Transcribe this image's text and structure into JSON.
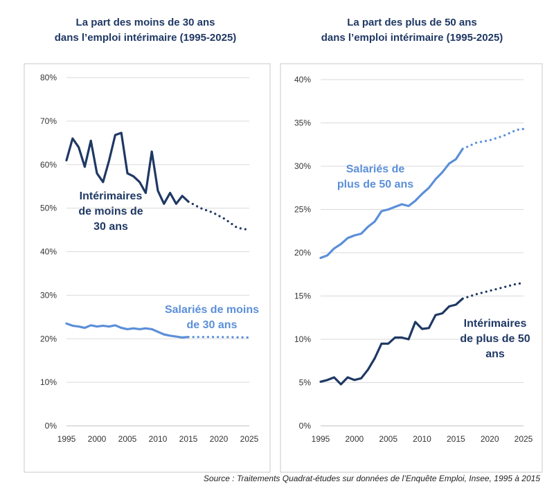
{
  "colors": {
    "dark": "#1f3864",
    "light": "#5b8fd9",
    "panel_border": "#c9c9c9",
    "grid": "#d9d9d9"
  },
  "chart_data": [
    {
      "type": "line",
      "title_line1": "La part des moins de 30 ans",
      "title_line2": "dans l’emploi intérimaire (1995-2025)",
      "xlim": [
        1995,
        2025
      ],
      "ylim": [
        0,
        80
      ],
      "x_ticks": [
        "1995",
        "2000",
        "2005",
        "2010",
        "2015",
        "2020",
        "2025"
      ],
      "y_ticks": [
        "0%",
        "10%",
        "20%",
        "30%",
        "40%",
        "50%",
        "60%",
        "70%",
        "80%"
      ],
      "grid": true,
      "series": [
        {
          "name": "Intérimaires de moins de 30 ans",
          "label_lines": [
            "Intérimaires",
            "de moins de",
            "30 ans"
          ],
          "color": "dark",
          "observed": [
            [
              1995,
              61
            ],
            [
              1996,
              66
            ],
            [
              1997,
              64
            ],
            [
              1998,
              59.5
            ],
            [
              1999,
              65.5
            ],
            [
              2000,
              58
            ],
            [
              2001,
              56
            ],
            [
              2002,
              61
            ],
            [
              2003,
              66.8
            ],
            [
              2004,
              67.3
            ],
            [
              2005,
              58
            ],
            [
              2006,
              57.3
            ],
            [
              2007,
              56
            ],
            [
              2008,
              53.5
            ],
            [
              2009,
              63
            ],
            [
              2010,
              54
            ],
            [
              2011,
              51
            ],
            [
              2012,
              53.5
            ],
            [
              2013,
              51
            ],
            [
              2014,
              52.8
            ],
            [
              2015,
              51.5
            ]
          ],
          "projected": [
            [
              2015,
              51.5
            ],
            [
              2017,
              50
            ],
            [
              2019,
              49
            ],
            [
              2021,
              47.5
            ],
            [
              2023,
              45.5
            ],
            [
              2025,
              45
            ]
          ]
        },
        {
          "name": "Salariés de moins de 30 ans",
          "label_lines": [
            "Salariés de moins",
            "de 30 ans"
          ],
          "color": "light",
          "observed": [
            [
              1995,
              23.5
            ],
            [
              1996,
              23
            ],
            [
              1997,
              22.8
            ],
            [
              1998,
              22.5
            ],
            [
              1999,
              23.1
            ],
            [
              2000,
              22.8
            ],
            [
              2001,
              23
            ],
            [
              2002,
              22.8
            ],
            [
              2003,
              23.1
            ],
            [
              2004,
              22.5
            ],
            [
              2005,
              22.2
            ],
            [
              2006,
              22.4
            ],
            [
              2007,
              22.2
            ],
            [
              2008,
              22.4
            ],
            [
              2009,
              22.2
            ],
            [
              2010,
              21.6
            ],
            [
              2011,
              21
            ],
            [
              2012,
              20.7
            ],
            [
              2013,
              20.5
            ],
            [
              2014,
              20.3
            ],
            [
              2015,
              20.4
            ]
          ],
          "projected": [
            [
              2015,
              20.4
            ],
            [
              2020,
              20.4
            ],
            [
              2025,
              20.3
            ]
          ]
        }
      ]
    },
    {
      "type": "line",
      "title_line1": "La part des plus de 50 ans",
      "title_line2": "dans l’emploi intérimaire (1995-2025)",
      "xlim": [
        1995,
        2025
      ],
      "ylim": [
        0,
        40
      ],
      "x_ticks": [
        "1995",
        "2000",
        "2005",
        "2010",
        "2015",
        "2020",
        "2025"
      ],
      "y_ticks": [
        "0%",
        "5%",
        "10%",
        "15%",
        "20%",
        "25%",
        "30%",
        "35%",
        "40%"
      ],
      "grid": true,
      "series": [
        {
          "name": "Salariés de plus de 50 ans",
          "label_lines": [
            "Salariés de",
            "plus de 50 ans"
          ],
          "color": "light",
          "observed": [
            [
              1995,
              19.4
            ],
            [
              1996,
              19.7
            ],
            [
              1997,
              20.5
            ],
            [
              1998,
              21
            ],
            [
              1999,
              21.7
            ],
            [
              2000,
              22
            ],
            [
              2001,
              22.2
            ],
            [
              2002,
              23
            ],
            [
              2003,
              23.6
            ],
            [
              2004,
              24.8
            ],
            [
              2005,
              25
            ],
            [
              2006,
              25.3
            ],
            [
              2007,
              25.6
            ],
            [
              2008,
              25.4
            ],
            [
              2009,
              26
            ],
            [
              2010,
              26.8
            ],
            [
              2011,
              27.5
            ],
            [
              2012,
              28.5
            ],
            [
              2013,
              29.3
            ],
            [
              2014,
              30.3
            ],
            [
              2015,
              30.8
            ],
            [
              2016,
              32
            ]
          ],
          "projected": [
            [
              2016,
              32
            ],
            [
              2018,
              32.7
            ],
            [
              2020,
              33
            ],
            [
              2022,
              33.5
            ],
            [
              2024,
              34.2
            ],
            [
              2025,
              34.3
            ]
          ]
        },
        {
          "name": "Intérimaires de plus de 50 ans",
          "label_lines": [
            "Intérimaires",
            "de plus de 50",
            "ans"
          ],
          "color": "dark",
          "observed": [
            [
              1995,
              5.1
            ],
            [
              1996,
              5.3
            ],
            [
              1997,
              5.6
            ],
            [
              1998,
              4.8
            ],
            [
              1999,
              5.6
            ],
            [
              2000,
              5.3
            ],
            [
              2001,
              5.5
            ],
            [
              2002,
              6.5
            ],
            [
              2003,
              7.8
            ],
            [
              2004,
              9.5
            ],
            [
              2005,
              9.5
            ],
            [
              2006,
              10.2
            ],
            [
              2007,
              10.2
            ],
            [
              2008,
              10
            ],
            [
              2009,
              12
            ],
            [
              2010,
              11.2
            ],
            [
              2011,
              11.3
            ],
            [
              2012,
              12.8
            ],
            [
              2013,
              13
            ],
            [
              2014,
              13.8
            ],
            [
              2015,
              14
            ],
            [
              2016,
              14.7
            ]
          ],
          "projected": [
            [
              2016,
              14.7
            ],
            [
              2018,
              15.2
            ],
            [
              2020,
              15.6
            ],
            [
              2022,
              16
            ],
            [
              2024,
              16.4
            ],
            [
              2025,
              16.5
            ]
          ]
        }
      ]
    }
  ],
  "source": "Source : Traitements Quadrat-études sur données de l’Enquête Emploi, Insee, 1995 à 2015"
}
